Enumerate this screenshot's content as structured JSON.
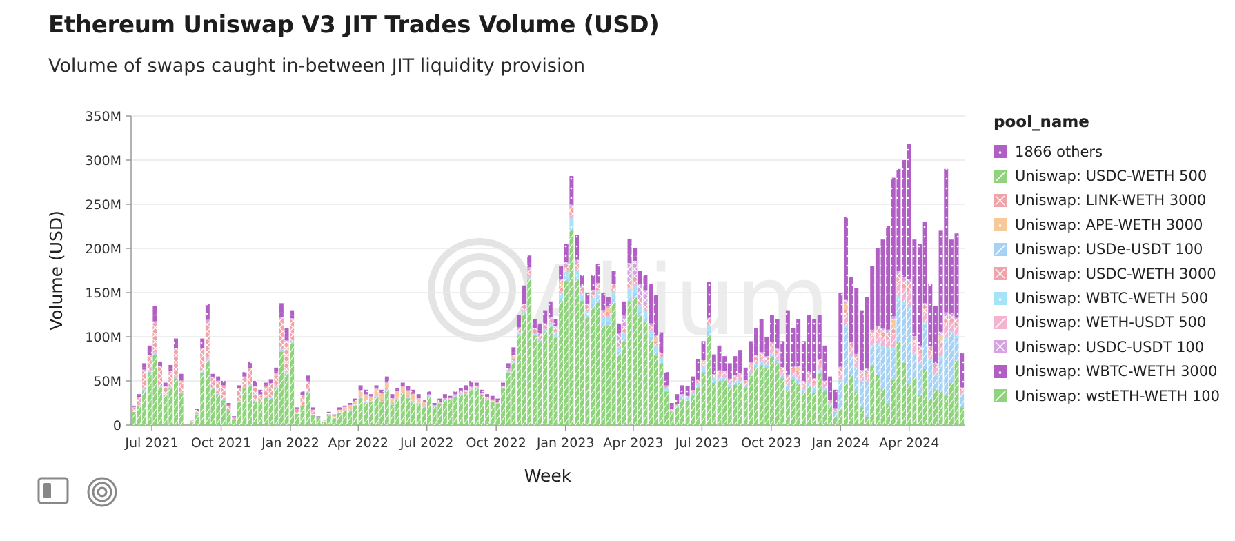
{
  "header": {
    "title": "Ethereum Uniswap V3 JIT Trades Volume (USD)",
    "subtitle": "Volume of swaps caught in-between JIT liquidity provision"
  },
  "legend": {
    "title": "pool_name",
    "items": [
      {
        "label": "1866 others",
        "color": "#b15fc5",
        "icon": "dot"
      },
      {
        "label": "Uniswap: USDC-WETH 500",
        "color": "#8fd47c",
        "icon": "slash"
      },
      {
        "label": "Uniswap: LINK-WETH 3000",
        "color": "#f0a3a8",
        "icon": "cross"
      },
      {
        "label": "Uniswap: APE-WETH 3000",
        "color": "#f7c99a",
        "icon": "dot"
      },
      {
        "label": "Uniswap: USDe-USDT 100",
        "color": "#a6d2f5",
        "icon": "slash"
      },
      {
        "label": "Uniswap: USDC-WETH 3000",
        "color": "#f0a3a8",
        "icon": "cross"
      },
      {
        "label": "Uniswap: WBTC-WETH 500",
        "color": "#a5e3f7",
        "icon": "dot"
      },
      {
        "label": "Uniswap: WETH-USDT 500",
        "color": "#f4b3d1",
        "icon": "slash"
      },
      {
        "label": "Uniswap: USDC-USDT 100",
        "color": "#d4a3e0",
        "icon": "cross"
      },
      {
        "label": "Uniswap: WBTC-WETH 3000",
        "color": "#b15fc5",
        "icon": "dot"
      },
      {
        "label": "Uniswap: wstETH-WETH 100",
        "color": "#8fd47c",
        "icon": "slash"
      }
    ]
  },
  "watermark": "Allium",
  "chart_data": {
    "type": "bar",
    "stacked": true,
    "xlabel": "Week",
    "ylabel": "Volume (USD)",
    "ylim": [
      0,
      350000000
    ],
    "y_ticks": [
      0,
      50000000,
      100000000,
      150000000,
      200000000,
      250000000,
      300000000,
      350000000
    ],
    "y_tick_labels": [
      "0",
      "50M",
      "100M",
      "150M",
      "200M",
      "250M",
      "300M",
      "350M"
    ],
    "x_tick_labels": [
      "Jul 2021",
      "Oct 2021",
      "Jan 2022",
      "Apr 2022",
      "Jul 2022",
      "Oct 2022",
      "Jan 2023",
      "Apr 2023",
      "Jul 2023",
      "Oct 2023",
      "Jan 2024",
      "Apr 2024"
    ],
    "grid": true,
    "legend_position": "right",
    "series_order": [
      "wstETH-WETH 100",
      "USDC-WETH 500",
      "USDe-USDT 100",
      "WBTC-WETH 500",
      "WETH-USDT 500",
      "USDC-WETH 3000",
      "LINK-WETH 3000",
      "APE-WETH 3000",
      "USDC-USDT 100",
      "WBTC-WETH 3000",
      "1866 others"
    ],
    "weekly_total_millions": [
      22,
      35,
      70,
      90,
      135,
      72,
      48,
      68,
      98,
      58,
      0,
      5,
      18,
      98,
      137,
      58,
      55,
      50,
      25,
      10,
      45,
      60,
      72,
      50,
      40,
      48,
      52,
      65,
      138,
      110,
      130,
      20,
      38,
      56,
      20,
      10,
      5,
      15,
      12,
      20,
      22,
      25,
      30,
      45,
      40,
      35,
      45,
      40,
      55,
      35,
      42,
      48,
      44,
      40,
      35,
      28,
      38,
      25,
      30,
      35,
      33,
      38,
      42,
      45,
      50,
      48,
      40,
      35,
      33,
      30,
      48,
      70,
      88,
      125,
      158,
      192,
      120,
      115,
      130,
      140,
      120,
      180,
      205,
      282,
      215,
      170,
      150,
      170,
      182,
      150,
      145,
      175,
      115,
      140,
      211,
      200,
      175,
      170,
      160,
      147,
      105,
      60,
      25,
      35,
      45,
      44,
      55,
      75,
      95,
      162,
      80,
      90,
      78,
      70,
      78,
      85,
      65,
      95,
      110,
      120,
      100,
      125,
      120,
      95,
      130,
      110,
      120,
      95,
      125,
      120,
      125,
      90,
      55,
      40,
      150,
      236,
      168,
      155,
      130,
      145,
      180,
      200,
      210,
      225,
      280,
      290,
      300,
      318,
      210,
      205,
      230,
      160,
      135,
      220,
      290,
      210,
      217,
      82
    ]
  }
}
